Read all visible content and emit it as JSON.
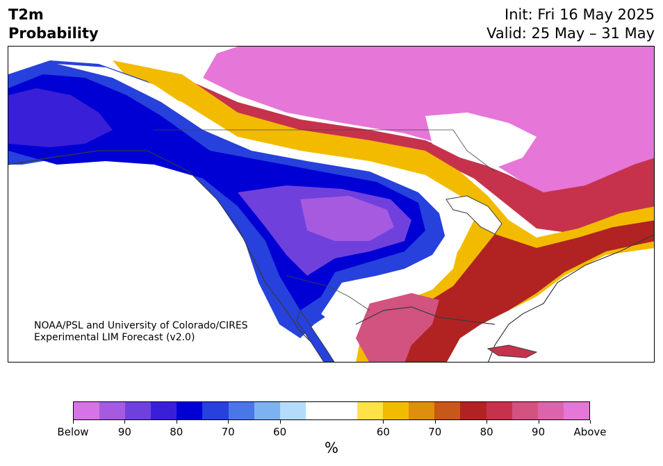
{
  "header": {
    "title_line1": "T2m",
    "title_line2": "Probability",
    "init_label": "Init: Fri 16 May 2025",
    "valid_label": "Valid: 25 May – 31 May"
  },
  "credit": {
    "line1": "NOAA/PSL and University of Colorado/CIRES",
    "line2": "Experimental LIM Forecast (v2.0)"
  },
  "colorbar": {
    "unit": "%",
    "colors": [
      "#d872e8",
      "#a55ae0",
      "#7040dc",
      "#3a1fd8",
      "#0000d4",
      "#2641dc",
      "#4a77e8",
      "#7bb3f2",
      "#b2dcfa",
      "#ffffff",
      "#ffffff",
      "#ffe14a",
      "#f3bb00",
      "#df8e0d",
      "#c75818",
      "#b02322",
      "#c6324c",
      "#d25280",
      "#dd64ac",
      "#e676d8"
    ],
    "ticks": [
      "Below",
      "90",
      "80",
      "70",
      "60",
      "60",
      "70",
      "80",
      "90",
      "Above"
    ]
  },
  "map_legend_colors": {
    "below_strong": "#3a1fd8",
    "below_mid": "#7040dc",
    "below_weak": "#a55ae0",
    "above_strong": "#e676d8",
    "above_mid": "#c6324c",
    "above_weak": "#f3bb00",
    "coast": "#3a3a3a"
  }
}
